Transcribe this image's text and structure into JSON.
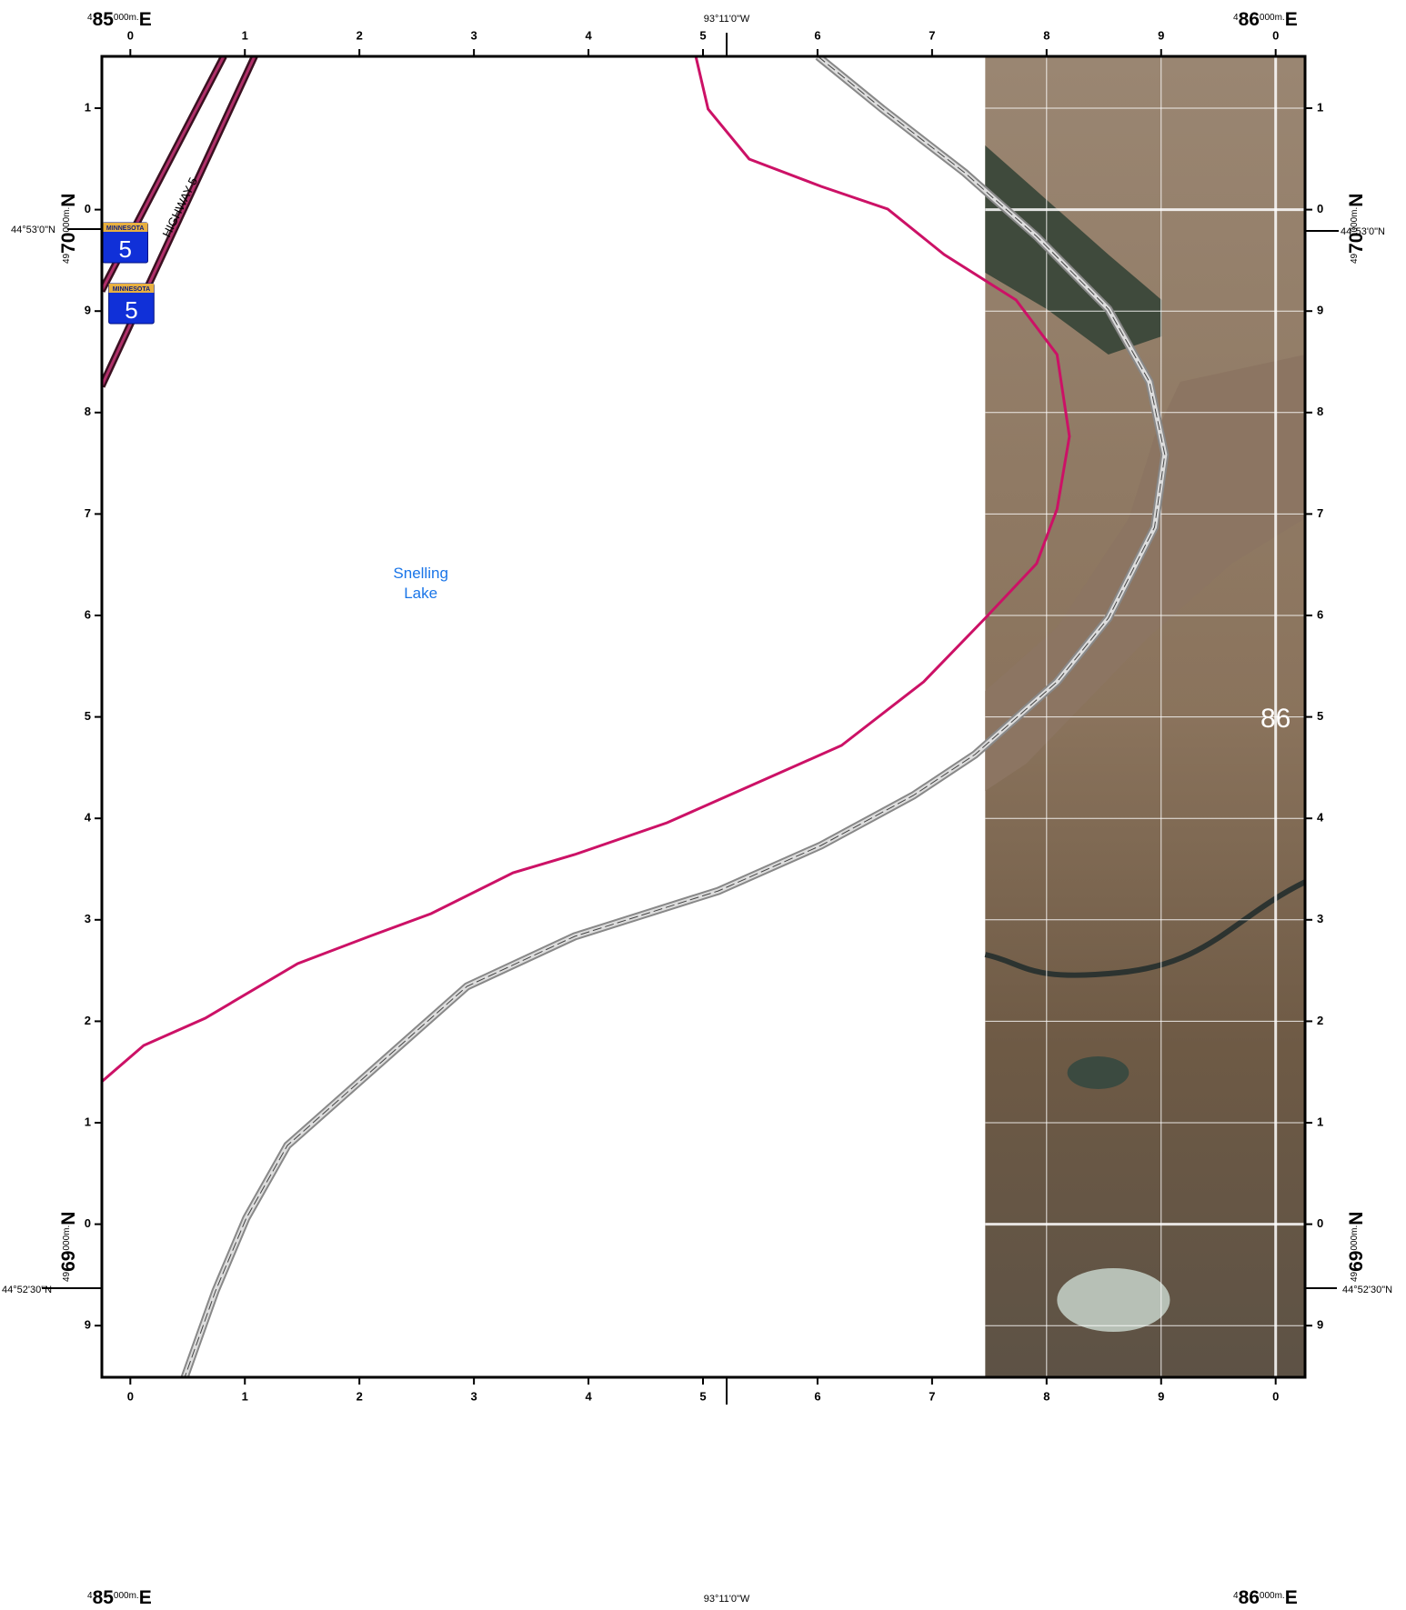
{
  "grid_labels": {
    "easting_ticks": [
      "0",
      "1",
      "2",
      "3",
      "4",
      "5",
      "6",
      "7",
      "8",
      "9",
      "0"
    ],
    "northing_ticks": [
      "1",
      "0",
      "9",
      "8",
      "7",
      "6",
      "5",
      "4",
      "3",
      "2",
      "1",
      "0",
      "9"
    ]
  },
  "corner_labels": {
    "easting_prefix": "4",
    "easting_major_1": "85",
    "easting_major_2": "86",
    "meters_suffix": "000m.",
    "east": "E",
    "northing_prefix": "49",
    "northing_major_1": "70",
    "northing_major_2": "69",
    "north": "N"
  },
  "graticule": {
    "longitude": "93°11'0\"W",
    "latitude_1": "44°53'0\"N",
    "latitude_2": "44°52'30\"N"
  },
  "features": {
    "highway_label": "HIGHWAY 5",
    "shield_state": "MINNESOTA",
    "shield_number": "5",
    "lake_label": [
      "Snelling",
      "Lake"
    ],
    "zone_label": "86"
  }
}
